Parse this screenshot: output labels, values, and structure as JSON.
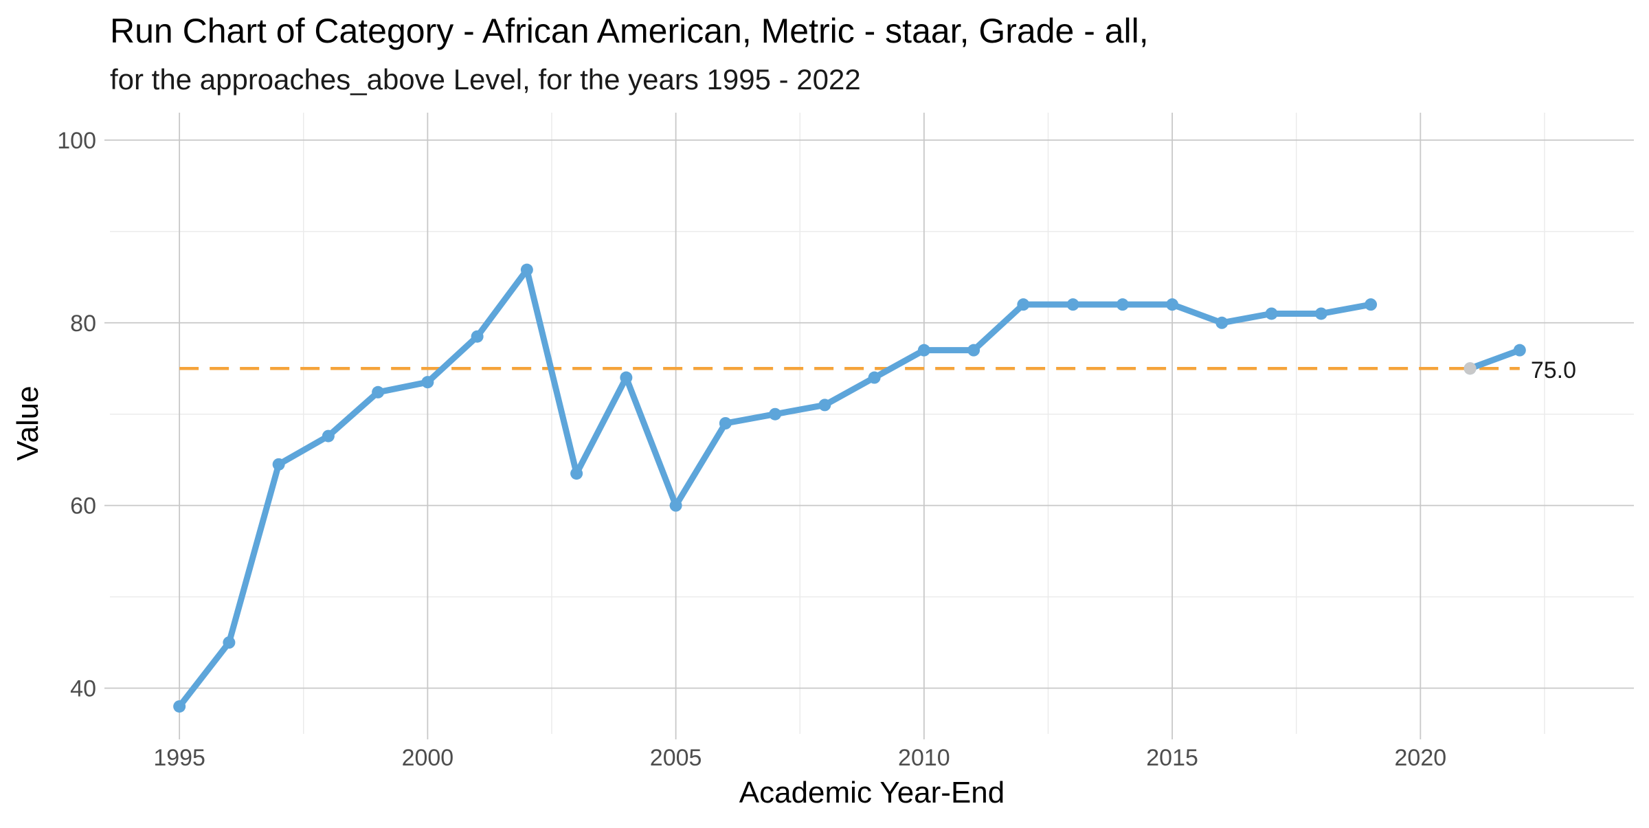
{
  "chart_data": {
    "type": "line",
    "title": "Run Chart of Category - African American, Metric - staar, Grade - all,",
    "subtitle": "for the approaches_above Level, for the years 1995 - 2022",
    "xlabel": "Academic Year-End",
    "ylabel": "Value",
    "xlim": [
      1993.6,
      2024.3
    ],
    "ylim": [
      35,
      103
    ],
    "x_ticks": [
      1995,
      2000,
      2005,
      2010,
      2015,
      2020
    ],
    "y_ticks": [
      40,
      60,
      80,
      100
    ],
    "grid": true,
    "series": [
      {
        "color": "#5DA5DA",
        "segments": [
          {
            "x": [
              1995,
              1996,
              1997,
              1998,
              1999,
              2000,
              2001,
              2002,
              2003,
              2004,
              2005,
              2006,
              2007,
              2008,
              2009,
              2010,
              2011,
              2012,
              2013,
              2014,
              2015,
              2016,
              2017,
              2018,
              2019
            ],
            "y": [
              38,
              45,
              64.5,
              67.6,
              72.4,
              73.5,
              78.5,
              85.8,
              63.5,
              74,
              60,
              69,
              70,
              71,
              74,
              77,
              77,
              82,
              82,
              82,
              82,
              80,
              81,
              81,
              82
            ]
          },
          {
            "x": [
              2021,
              2022
            ],
            "y": [
              75,
              77
            ]
          }
        ]
      }
    ],
    "highlight_points": [
      {
        "x": 2021,
        "y": 75,
        "color": "#C8C8C8"
      }
    ],
    "reference_line": {
      "value": 75.0,
      "x_start": 1995,
      "x_end": 2022,
      "color": "#F5A33A",
      "style": "dashed",
      "label": "75.0"
    }
  }
}
